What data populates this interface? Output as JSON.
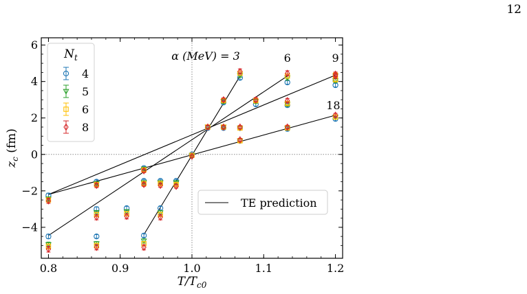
{
  "page": {
    "number": "12"
  },
  "chart_data": {
    "type": "scatter",
    "xlabel": "T/T_c0",
    "ylabel": "z_c (fm)",
    "xlim": [
      0.79,
      1.21
    ],
    "ylim": [
      -5.7,
      6.4
    ],
    "x_ticks": [
      0.8,
      0.9,
      1.0,
      1.1,
      1.2
    ],
    "x_tick_labels": [
      "0.8",
      "0.9",
      "1.0",
      "1.1",
      "1.2"
    ],
    "y_ticks": [
      -4,
      -2,
      0,
      2,
      4,
      6
    ],
    "y_tick_labels": [
      "−4",
      "−2",
      "0",
      "2",
      "4",
      "6"
    ],
    "reference_lines": {
      "x": 1.0,
      "y": 0,
      "style": "dotted"
    },
    "grid": false,
    "legend": {
      "title": "N_t",
      "placement": "top-left",
      "entries": [
        "4",
        "5",
        "6",
        "8"
      ]
    },
    "line_legend": {
      "label": "TE prediction",
      "placement": "lower-right"
    },
    "alpha_header": "α (MeV) = 3",
    "alpha_labels": [
      {
        "text": "6",
        "x": 1.133,
        "y": 5.3
      },
      {
        "text": "9",
        "x": 1.2,
        "y": 5.3
      },
      {
        "text": "18",
        "x": 1.197,
        "y": 2.7
      }
    ],
    "te_lines": [
      {
        "alpha": 3,
        "x": [
          0.933,
          1.067
        ],
        "y": [
          -4.4,
          4.3
        ]
      },
      {
        "alpha": 6,
        "x": [
          0.8,
          1.133
        ],
        "y": [
          -4.45,
          4.3
        ]
      },
      {
        "alpha": 9,
        "x": [
          0.8,
          1.2
        ],
        "y": [
          -2.2,
          4.35
        ]
      },
      {
        "alpha": 18,
        "x": [
          0.8,
          1.2
        ],
        "y": [
          -2.2,
          2.15
        ]
      }
    ],
    "series": [
      {
        "name": "4",
        "color": "#1f77b4",
        "marker": "circle",
        "x": [
          0.8,
          0.8,
          0.867,
          0.867,
          0.867,
          0.909,
          0.933,
          0.933,
          0.933,
          0.956,
          0.956,
          0.978,
          1.0,
          1.022,
          1.044,
          1.044,
          1.067,
          1.067,
          1.067,
          1.089,
          1.133,
          1.133,
          1.133,
          1.2,
          1.2,
          1.2
        ],
        "y": [
          -2.25,
          -4.5,
          -1.5,
          -3.0,
          -4.5,
          -2.95,
          -0.75,
          -1.45,
          -4.45,
          -1.45,
          -2.95,
          -1.45,
          0.0,
          1.45,
          1.45,
          2.85,
          0.75,
          1.45,
          4.2,
          2.75,
          1.4,
          2.7,
          3.95,
          1.95,
          3.8,
          4.05
        ],
        "error": [
          0.12,
          0.12,
          0.1,
          0.12,
          0.1,
          0.1,
          0.08,
          0.08,
          0.1,
          0.08,
          0.1,
          0.08,
          0.05,
          0.1,
          0.08,
          0.1,
          0.08,
          0.08,
          0.1,
          0.1,
          0.1,
          0.1,
          0.1,
          0.1,
          0.1,
          0.1
        ]
      },
      {
        "name": "5",
        "color": "#2ca02c",
        "marker": "triangle-down",
        "x": [
          0.8,
          0.8,
          0.867,
          0.867,
          0.867,
          0.909,
          0.933,
          0.933,
          0.933,
          0.956,
          0.956,
          0.978,
          1.0,
          1.022,
          1.044,
          1.044,
          1.067,
          1.067,
          1.067,
          1.089,
          1.133,
          1.133,
          1.133,
          1.2,
          1.2,
          1.2
        ],
        "y": [
          -2.45,
          -4.95,
          -1.6,
          -3.2,
          -4.9,
          -3.15,
          -0.8,
          -1.55,
          -4.75,
          -1.55,
          -3.2,
          -1.55,
          -0.05,
          1.5,
          1.5,
          2.9,
          0.75,
          1.45,
          4.35,
          2.9,
          1.45,
          2.75,
          4.2,
          2.05,
          4.05,
          4.3
        ],
        "error": [
          0.12,
          0.14,
          0.1,
          0.12,
          0.12,
          0.12,
          0.08,
          0.08,
          0.12,
          0.08,
          0.12,
          0.08,
          0.05,
          0.1,
          0.08,
          0.1,
          0.08,
          0.08,
          0.12,
          0.1,
          0.1,
          0.1,
          0.12,
          0.1,
          0.1,
          0.1
        ]
      },
      {
        "name": "6",
        "color": "#ffbf00",
        "marker": "square",
        "x": [
          0.8,
          0.8,
          0.867,
          0.867,
          0.867,
          0.909,
          0.933,
          0.933,
          0.933,
          0.956,
          0.956,
          0.978,
          1.0,
          1.022,
          1.044,
          1.044,
          1.067,
          1.067,
          1.067,
          1.089,
          1.133,
          1.133,
          1.133,
          1.2,
          1.2,
          1.2
        ],
        "y": [
          -2.5,
          -5.05,
          -1.65,
          -3.3,
          -5.0,
          -3.25,
          -0.85,
          -1.6,
          -4.9,
          -1.6,
          -3.3,
          -1.65,
          -0.05,
          1.5,
          1.5,
          2.95,
          0.75,
          1.45,
          4.45,
          2.95,
          1.45,
          2.8,
          4.3,
          2.05,
          4.1,
          4.35
        ],
        "error": [
          0.12,
          0.14,
          0.1,
          0.12,
          0.12,
          0.12,
          0.08,
          0.08,
          0.12,
          0.08,
          0.12,
          0.08,
          0.05,
          0.1,
          0.08,
          0.1,
          0.08,
          0.08,
          0.12,
          0.1,
          0.1,
          0.1,
          0.12,
          0.1,
          0.1,
          0.1
        ]
      },
      {
        "name": "8",
        "color": "#d62728",
        "marker": "diamond",
        "x": [
          0.8,
          0.8,
          0.867,
          0.867,
          0.867,
          0.909,
          0.933,
          0.933,
          0.933,
          0.956,
          0.956,
          0.978,
          1.0,
          1.022,
          1.044,
          1.044,
          1.067,
          1.067,
          1.067,
          1.089,
          1.133,
          1.133,
          1.133,
          1.2,
          1.2,
          1.2
        ],
        "y": [
          -2.55,
          -5.2,
          -1.7,
          -3.45,
          -5.1,
          -3.4,
          -0.9,
          -1.65,
          -5.1,
          -1.7,
          -3.45,
          -1.75,
          -0.1,
          1.5,
          1.5,
          3.0,
          0.8,
          1.5,
          4.55,
          3.0,
          1.5,
          2.95,
          4.45,
          2.15,
          4.3,
          4.4
        ],
        "error": [
          0.14,
          0.16,
          0.12,
          0.14,
          0.14,
          0.14,
          0.1,
          0.1,
          0.14,
          0.1,
          0.14,
          0.1,
          0.06,
          0.1,
          0.08,
          0.1,
          0.08,
          0.08,
          0.14,
          0.12,
          0.1,
          0.12,
          0.14,
          0.1,
          0.12,
          0.12
        ]
      }
    ]
  }
}
